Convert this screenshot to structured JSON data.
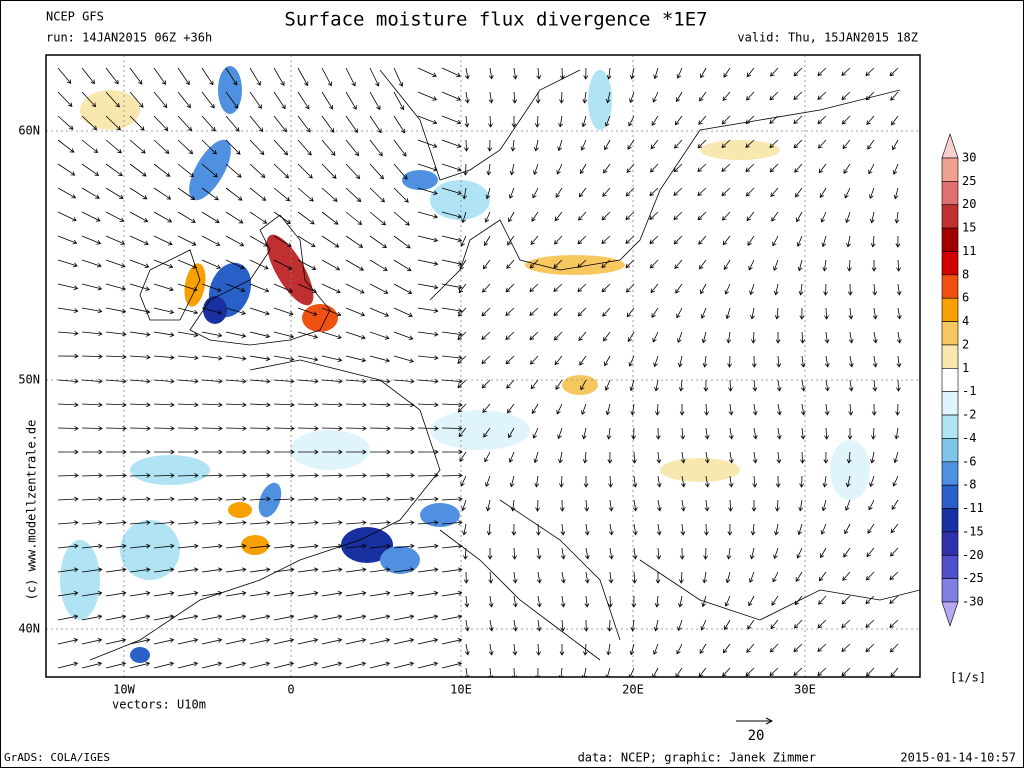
{
  "header": {
    "model": "NCEP GFS",
    "run": "run: 14JAN2015 06Z +36h",
    "title": "Surface moisture flux divergence *1E7",
    "valid": "valid: Thu, 15JAN2015 18Z"
  },
  "map": {
    "lat_labels": [
      "60N",
      "50N",
      "40N"
    ],
    "lon_labels": [
      "10W",
      "0",
      "10E",
      "20E",
      "30E"
    ],
    "vectors": "vectors: U10m",
    "copyright": "(c) www.modellzentrale.de",
    "reference_vector": "20"
  },
  "colorbar": {
    "labels": [
      "30",
      "25",
      "20",
      "15",
      "11",
      "8",
      "6",
      "4",
      "2",
      "1",
      "-1",
      "-2",
      "-4",
      "-6",
      "-8",
      "-11",
      "-15",
      "-20",
      "-25",
      "-30"
    ],
    "colors": [
      "#f8d0d0",
      "#f0a090",
      "#e07070",
      "#c03030",
      "#a00000",
      "#d00000",
      "#f05010",
      "#f8a000",
      "#f8c860",
      "#f8e8b0",
      "#ffffff",
      "#e0f4fc",
      "#b0e4f4",
      "#80c4ec",
      "#5090e0",
      "#2860c8",
      "#1830a0",
      "#3030a8",
      "#5050c8",
      "#8080e0",
      "#b8a8f0"
    ],
    "unit": "[1/s]"
  },
  "footer": {
    "software": "GrADS: COLA/IGES",
    "credits": "data: NCEP; graphic: Janek Zimmer",
    "timestamp": "2015-01-14-10:57"
  }
}
